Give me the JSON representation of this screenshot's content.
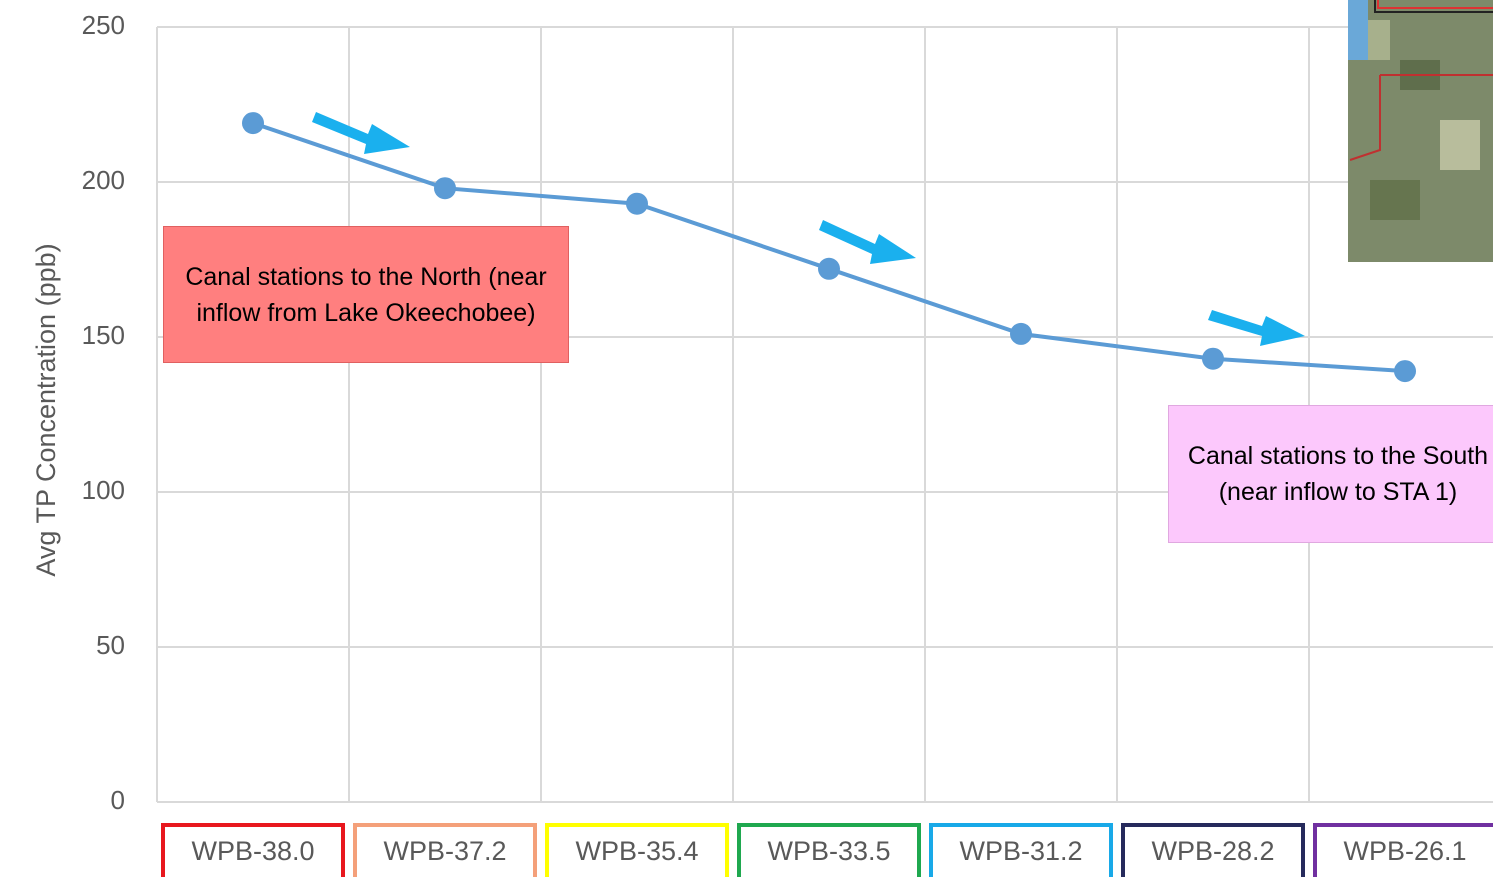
{
  "chart_data": {
    "type": "line",
    "y_label": "Avg TP Concentration (ppb)",
    "categories": [
      "WPB-38.0",
      "WPB-37.2",
      "WPB-35.4",
      "WPB-33.5",
      "WPB-31.2",
      "WPB-28.2",
      "WPB-26.1"
    ],
    "category_box_colors": [
      "#e8171e",
      "#f4a07a",
      "#ffff00",
      "#1fa84f",
      "#18a9e8",
      "#262a5c",
      "#7030a0"
    ],
    "series": [
      {
        "color": "#5b9bd5",
        "values": [
          219,
          198,
          193,
          172,
          151,
          143,
          139
        ]
      }
    ],
    "ylim": [
      0,
      250
    ],
    "yticks": [
      0,
      50,
      100,
      150,
      200,
      250
    ],
    "grid": true,
    "annotations": [
      "Canal stations to the North (near inflow from Lake Okeechobee)",
      "Canal stations to the South (near inflow to STA 1)"
    ]
  }
}
